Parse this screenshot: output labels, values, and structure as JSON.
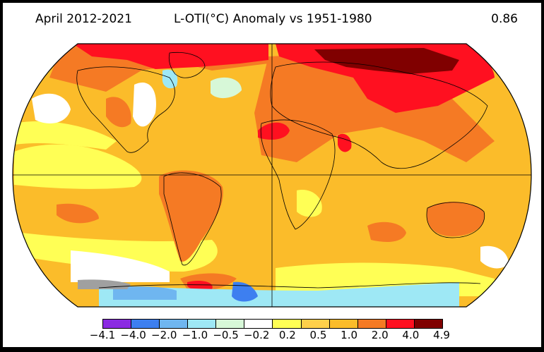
{
  "header": {
    "period": "April 2012-2021",
    "title": "L-OTI(°C) Anomaly vs 1951-1980",
    "global_mean": "0.86"
  },
  "colorbar": {
    "colors": [
      "#8b2be2",
      "#3d7ff0",
      "#6fb6f0",
      "#9ee8f5",
      "#d7f8d8",
      "#ffffff",
      "#ffff55",
      "#ffd04a",
      "#fbbc2a",
      "#f57a24",
      "#ff1020",
      "#800000"
    ],
    "labels": [
      "−4.1",
      "−4.0",
      "−2.0",
      "−1.0",
      "−0.5",
      "−0.2",
      "0.2",
      "0.5",
      "1.0",
      "2.0",
      "4.0",
      "4.9"
    ]
  },
  "palette": {
    "ocean_base": "#fbbc2a",
    "light": "#ffff55",
    "orange": "#f57a24",
    "red": "#ff1020",
    "darkred": "#800000",
    "white": "#ffffff",
    "cyan": "#9ee8f5",
    "blue": "#6fb6f0",
    "deepblue": "#3d7ff0",
    "mint": "#d7f8d8",
    "nodata": "#a0a0a0"
  }
}
